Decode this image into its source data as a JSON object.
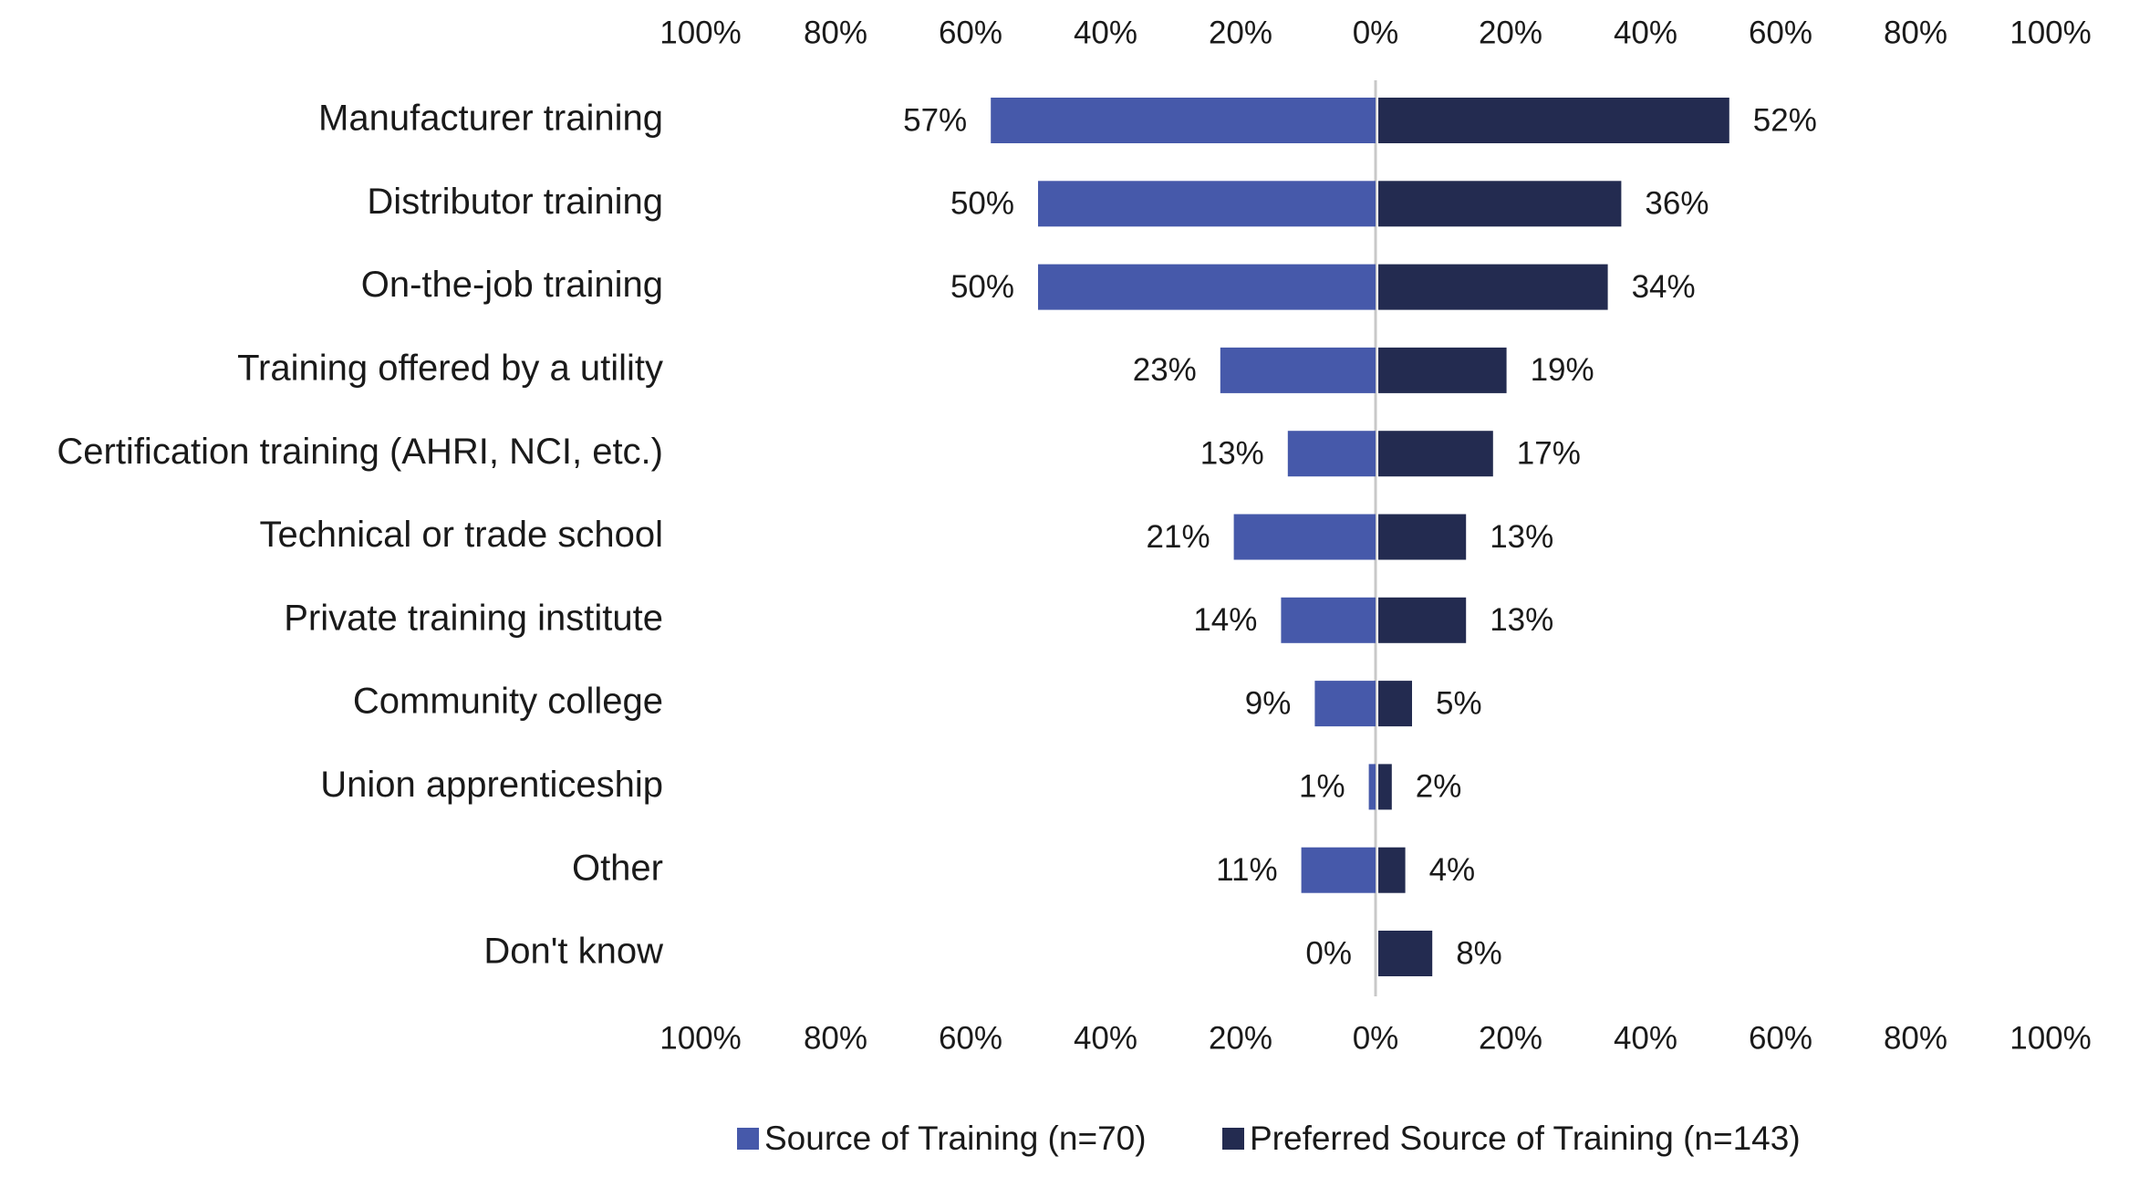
{
  "chart_data": {
    "type": "bar",
    "orientation": "horizontal-butterfly",
    "title": "",
    "xlabel": "",
    "ylabel": "",
    "xlim": [
      -100,
      100
    ],
    "grid": false,
    "legend_position": "bottom",
    "categories": [
      "Manufacturer training",
      "Distributor training",
      "On-the-job training",
      "Training offered by a utility",
      "Certification training (AHRI, NCI, etc.)",
      "Technical or trade school",
      "Private training institute",
      "Community college",
      "Union apprenticeship",
      "Other",
      "Don't know"
    ],
    "series": [
      {
        "name": "Source of Training (n=70)",
        "color": "#4659AA",
        "side": "left",
        "values": [
          57,
          50,
          50,
          23,
          13,
          21,
          14,
          9,
          1,
          11,
          0
        ],
        "labels": [
          "57%",
          "50%",
          "50%",
          "23%",
          "13%",
          "21%",
          "14%",
          "9%",
          "1%",
          "11%",
          "0%"
        ]
      },
      {
        "name": "Preferred Source of Training (n=143)",
        "color": "#232B50",
        "side": "right",
        "values": [
          52,
          36,
          34,
          19,
          17,
          13,
          13,
          5,
          2,
          4,
          8
        ],
        "labels": [
          "52%",
          "36%",
          "34%",
          "19%",
          "17%",
          "13%",
          "13%",
          "5%",
          "2%",
          "4%",
          "8%"
        ]
      }
    ],
    "top_axis_ticks": [
      "100%",
      "80%",
      "60%",
      "40%",
      "20%",
      "0%",
      "20%",
      "40%",
      "60%",
      "80%",
      "100%"
    ],
    "bottom_axis_ticks": [
      "100%",
      "80%",
      "60%",
      "40%",
      "20%",
      "0%",
      "20%",
      "40%",
      "60%",
      "80%",
      "100%"
    ],
    "axis_color": "#C8C8C8"
  }
}
